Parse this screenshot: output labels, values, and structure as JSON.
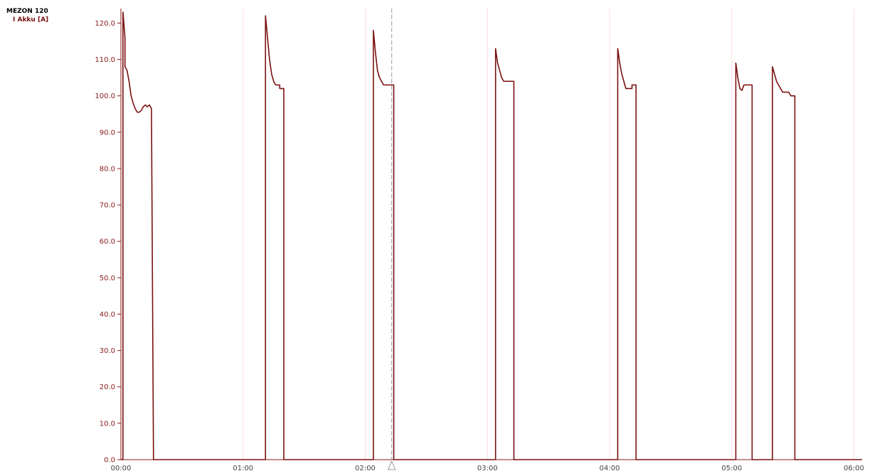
{
  "header": {
    "device": "MEZON 120",
    "channel": "I Akku [A]"
  },
  "colors": {
    "series": "#7a1010",
    "axis": "#8b1a1a",
    "tick_text_y": "#8b1a1a",
    "tick_text_x": "#444444",
    "grid": "#ffdada",
    "cursor": "#999999",
    "background": "#ffffff"
  },
  "chart_data": {
    "type": "line",
    "title": "",
    "xlabel": "",
    "ylabel": "I Akku [A]",
    "ylim": [
      0,
      124
    ],
    "xlim": [
      "00:00",
      "06:04"
    ],
    "yticks": [
      0.0,
      10.0,
      20.0,
      30.0,
      40.0,
      50.0,
      60.0,
      70.0,
      80.0,
      90.0,
      100.0,
      110.0,
      120.0
    ],
    "ytick_labels": [
      "0.0",
      "10.0",
      "20.0",
      "30.0",
      "40.0",
      "50.0",
      "60.0",
      "70.0",
      "80.0",
      "90.0",
      "100.0",
      "110.0",
      "120.0"
    ],
    "xtick_labels": [
      "00:00",
      "01:00",
      "02:00",
      "03:00",
      "04:00",
      "05:00",
      "06:00"
    ],
    "grid": "vertical",
    "cursor": {
      "time": "02:13"
    },
    "series": [
      {
        "points": [
          [
            "00:00",
            0
          ],
          [
            "00:01",
            0
          ],
          [
            "00:01",
            123
          ],
          [
            "00:02",
            116
          ],
          [
            "00:02",
            108
          ],
          [
            "00:03",
            107
          ],
          [
            "00:04",
            104
          ],
          [
            "00:05",
            100
          ],
          [
            "00:06",
            98
          ],
          [
            "00:07",
            96.5
          ],
          [
            "00:08",
            95.5
          ],
          [
            "00:09",
            95.5
          ],
          [
            "00:10",
            96
          ],
          [
            "00:11",
            97
          ],
          [
            "00:12",
            97.5
          ],
          [
            "00:13",
            97
          ],
          [
            "00:14",
            97.5
          ],
          [
            "00:15",
            96.5
          ],
          [
            "00:16",
            0
          ],
          [
            "01:10",
            0
          ],
          [
            "01:11",
            0
          ],
          [
            "01:11",
            122
          ],
          [
            "01:12",
            116
          ],
          [
            "01:13",
            110
          ],
          [
            "01:14",
            106
          ],
          [
            "01:15",
            104
          ],
          [
            "01:16",
            103
          ],
          [
            "01:18",
            103
          ],
          [
            "01:18",
            102
          ],
          [
            "01:20",
            102
          ],
          [
            "01:20",
            0
          ],
          [
            "02:03",
            0
          ],
          [
            "02:04",
            0
          ],
          [
            "02:04",
            118
          ],
          [
            "02:05",
            112
          ],
          [
            "02:06",
            107
          ],
          [
            "02:07",
            105
          ],
          [
            "02:08",
            104
          ],
          [
            "02:09",
            103
          ],
          [
            "02:10",
            103
          ],
          [
            "02:11",
            103
          ],
          [
            "02:14",
            103
          ],
          [
            "02:14",
            0
          ],
          [
            "03:04",
            0
          ],
          [
            "03:04",
            113
          ],
          [
            "03:05",
            109
          ],
          [
            "03:06",
            107
          ],
          [
            "03:07",
            105
          ],
          [
            "03:08",
            104
          ],
          [
            "03:13",
            104
          ],
          [
            "03:13",
            0
          ],
          [
            "04:04",
            0
          ],
          [
            "04:04",
            113
          ],
          [
            "04:05",
            109
          ],
          [
            "04:06",
            106
          ],
          [
            "04:07",
            104
          ],
          [
            "04:08",
            102
          ],
          [
            "04:11",
            102
          ],
          [
            "04:11",
            103
          ],
          [
            "04:13",
            103
          ],
          [
            "04:13",
            0
          ],
          [
            "05:02",
            0
          ],
          [
            "05:02",
            109
          ],
          [
            "05:03",
            105
          ],
          [
            "05:04",
            102
          ],
          [
            "05:05",
            101.5
          ],
          [
            "05:06",
            103
          ],
          [
            "05:10",
            103
          ],
          [
            "05:10",
            0
          ],
          [
            "05:20",
            0
          ],
          [
            "05:20",
            108
          ],
          [
            "05:21",
            106
          ],
          [
            "05:22",
            104
          ],
          [
            "05:23",
            103
          ],
          [
            "05:24",
            102
          ],
          [
            "05:25",
            101
          ],
          [
            "05:28",
            101
          ],
          [
            "05:29",
            100
          ],
          [
            "05:31",
            100
          ],
          [
            "05:31",
            99.5
          ],
          [
            "05:31",
            0
          ],
          [
            "06:04",
            0
          ]
        ]
      }
    ]
  }
}
